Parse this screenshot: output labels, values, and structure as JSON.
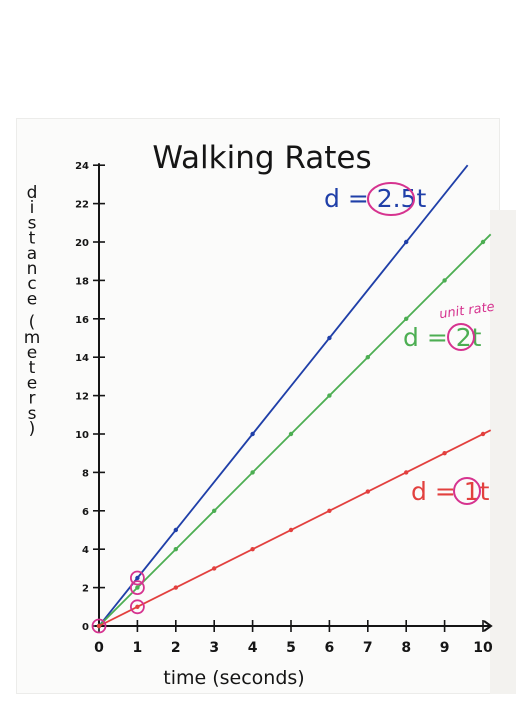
{
  "chart_data": {
    "type": "line",
    "title": "Walking Rates",
    "xlabel": "time (seconds)",
    "ylabel": "distance (meters)",
    "xlim": [
      0,
      10
    ],
    "ylim": [
      0,
      24
    ],
    "x_ticks": [
      0,
      1,
      2,
      3,
      4,
      5,
      6,
      7,
      8,
      9,
      10
    ],
    "y_ticks": [
      0,
      2,
      4,
      6,
      8,
      10,
      12,
      14,
      16,
      18,
      20,
      22,
      24
    ],
    "grid": false,
    "series": [
      {
        "name": "d = 2.5t",
        "color": "#1f3fa8",
        "slope": 2.5,
        "points": [
          [
            0,
            0
          ],
          [
            1,
            2.5
          ],
          [
            2,
            5
          ],
          [
            4,
            10
          ],
          [
            6,
            15
          ],
          [
            8,
            20
          ]
        ],
        "line_end_x": 9.6
      },
      {
        "name": "d = 2t",
        "color": "#4cae52",
        "slope": 2,
        "points": [
          [
            0,
            0
          ],
          [
            1,
            2
          ],
          [
            2,
            4
          ],
          [
            3,
            6
          ],
          [
            4,
            8
          ],
          [
            5,
            10
          ],
          [
            6,
            12
          ],
          [
            7,
            14
          ],
          [
            8,
            16
          ],
          [
            9,
            18
          ],
          [
            10,
            20
          ]
        ],
        "line_end_x": 10.2
      },
      {
        "name": "d = 1t",
        "color": "#e2403e",
        "slope": 1,
        "points": [
          [
            0,
            0
          ],
          [
            1,
            1
          ],
          [
            2,
            2
          ],
          [
            3,
            3
          ],
          [
            4,
            4
          ],
          [
            5,
            5
          ],
          [
            6,
            6
          ],
          [
            7,
            7
          ],
          [
            8,
            8
          ],
          [
            9,
            9
          ],
          [
            10,
            10
          ]
        ],
        "line_end_x": 10.2
      }
    ],
    "circled_points": [
      [
        1,
        2.5
      ],
      [
        1,
        2
      ],
      [
        1,
        1
      ],
      [
        0,
        0
      ]
    ],
    "annotations": {
      "eq_blue": {
        "prefix": "d = ",
        "value": "2.5",
        "suffix": "t"
      },
      "eq_green": {
        "prefix": "d = ",
        "value": "2",
        "suffix": "t"
      },
      "eq_red": {
        "prefix": "d = ",
        "value": "1",
        "suffix": "t"
      },
      "unit_rate": "unit rate"
    },
    "colors": {
      "highlight": "#d6338f",
      "ink": "#151515"
    }
  }
}
